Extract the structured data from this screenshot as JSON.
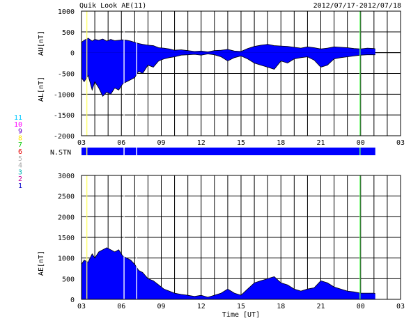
{
  "header": {
    "title": "Quik Look AE(11)",
    "date_range": "2012/07/17-2012/07/18"
  },
  "station_legend": [
    {
      "num": "11",
      "color": "#00c8ff"
    },
    {
      "num": "10",
      "color": "#ff00ff"
    },
    {
      "num": "9",
      "color": "#6400c8"
    },
    {
      "num": "8",
      "color": "#ffe600"
    },
    {
      "num": "7",
      "color": "#00c800"
    },
    {
      "num": "6",
      "color": "#e60000"
    },
    {
      "num": "5",
      "color": "#b4b4b4"
    },
    {
      "num": "4",
      "color": "#a0a0a0"
    },
    {
      "num": "3",
      "color": "#00b4b4"
    },
    {
      "num": "2",
      "color": "#c80096"
    },
    {
      "num": "1",
      "color": "#0000c8"
    }
  ],
  "chart_data": [
    {
      "type": "area",
      "name": "AU/AL",
      "ylabel_top": "AU[nT]",
      "ylabel_bottom": "AL[nT]",
      "ylim": [
        -2000,
        1000
      ],
      "yticks": [
        "1000",
        "500",
        "0",
        "-500",
        "-1000",
        "-1500",
        "-2000"
      ],
      "ytick_values": [
        1000,
        500,
        0,
        -500,
        -1000,
        -1500,
        -2000
      ],
      "xticks": [
        "03",
        "06",
        "09",
        "12",
        "15",
        "18",
        "21",
        "00",
        "03"
      ],
      "xlim_hours": [
        3,
        27
      ],
      "grid": true,
      "fill_color": "#0000ff",
      "series": [
        {
          "label": "AU",
          "x": [
            3.0,
            3.2,
            3.5,
            3.8,
            4.0,
            4.3,
            4.6,
            4.9,
            5.2,
            5.5,
            5.8,
            6.1,
            6.4,
            6.7,
            7.0,
            7.3,
            7.6,
            8.0,
            8.4,
            8.8,
            9.2,
            9.6,
            10.0,
            10.5,
            11.0,
            11.5,
            12.0,
            12.5,
            13.0,
            13.5,
            14.0,
            14.5,
            15.0,
            15.5,
            16.0,
            16.5,
            17.0,
            17.5,
            18.0,
            18.5,
            19.0,
            19.5,
            20.0,
            20.5,
            21.0,
            21.5,
            22.0,
            22.5,
            23.0,
            23.5,
            24.0,
            24.5,
            25.0,
            25.1
          ],
          "y": [
            250,
            300,
            350,
            280,
            320,
            300,
            330,
            280,
            320,
            290,
            300,
            310,
            300,
            280,
            250,
            220,
            200,
            180,
            170,
            120,
            110,
            90,
            60,
            70,
            50,
            30,
            40,
            20,
            50,
            60,
            80,
            40,
            30,
            100,
            150,
            180,
            200,
            170,
            160,
            150,
            130,
            110,
            140,
            120,
            90,
            110,
            140,
            130,
            120,
            100,
            90,
            110,
            100,
            90
          ]
        },
        {
          "label": "AL",
          "x": [
            3.0,
            3.2,
            3.5,
            3.8,
            4.0,
            4.3,
            4.6,
            4.9,
            5.2,
            5.5,
            5.8,
            6.1,
            6.4,
            6.7,
            7.0,
            7.3,
            7.6,
            8.0,
            8.4,
            8.8,
            9.2,
            9.6,
            10.0,
            10.5,
            11.0,
            11.5,
            12.0,
            12.5,
            13.0,
            13.5,
            14.0,
            14.5,
            15.0,
            15.5,
            16.0,
            16.5,
            17.0,
            17.5,
            18.0,
            18.5,
            19.0,
            19.5,
            20.0,
            20.5,
            21.0,
            21.5,
            22.0,
            22.5,
            23.0,
            23.5,
            24.0,
            24.5,
            25.0,
            25.1
          ],
          "y": [
            -600,
            -700,
            -550,
            -900,
            -700,
            -850,
            -1050,
            -950,
            -1000,
            -850,
            -900,
            -750,
            -700,
            -650,
            -600,
            -450,
            -500,
            -300,
            -350,
            -200,
            -150,
            -120,
            -100,
            -60,
            -50,
            -40,
            -60,
            -30,
            -50,
            -100,
            -200,
            -120,
            -80,
            -150,
            -250,
            -300,
            -350,
            -400,
            -200,
            -250,
            -150,
            -120,
            -100,
            -180,
            -350,
            -300,
            -150,
            -120,
            -100,
            -80,
            -60,
            -50,
            -50,
            -50
          ]
        }
      ]
    },
    {
      "type": "area",
      "name": "AE",
      "ylabel": "AE[nT]",
      "ylim": [
        0,
        3000
      ],
      "yticks": [
        "3000",
        "2500",
        "2000",
        "1500",
        "1000",
        "500",
        "0"
      ],
      "ytick_values": [
        3000,
        2500,
        2000,
        1500,
        1000,
        500,
        0
      ],
      "xticks": [
        "03",
        "06",
        "09",
        "12",
        "15",
        "18",
        "21",
        "00",
        "03"
      ],
      "xlabel": "Time [UT]",
      "xlim_hours": [
        3,
        27
      ],
      "grid": true,
      "fill_color": "#0000ff",
      "series": [
        {
          "label": "AE",
          "x": [
            3.0,
            3.2,
            3.5,
            3.8,
            4.0,
            4.3,
            4.6,
            4.9,
            5.2,
            5.5,
            5.8,
            6.1,
            6.4,
            6.7,
            7.0,
            7.3,
            7.6,
            8.0,
            8.4,
            8.8,
            9.2,
            9.6,
            10.0,
            10.5,
            11.0,
            11.5,
            12.0,
            12.5,
            13.0,
            13.5,
            14.0,
            14.5,
            15.0,
            15.5,
            16.0,
            16.5,
            17.0,
            17.5,
            18.0,
            18.5,
            19.0,
            19.5,
            20.0,
            20.5,
            21.0,
            21.5,
            22.0,
            22.5,
            23.0,
            23.5,
            24.0,
            24.5,
            25.0,
            25.1
          ],
          "y": [
            850,
            950,
            900,
            1100,
            1000,
            1150,
            1200,
            1250,
            1200,
            1150,
            1200,
            1050,
            1000,
            950,
            850,
            700,
            650,
            500,
            450,
            350,
            250,
            200,
            150,
            120,
            100,
            70,
            100,
            50,
            100,
            150,
            250,
            150,
            100,
            250,
            400,
            450,
            500,
            550,
            400,
            350,
            250,
            200,
            250,
            280,
            450,
            400,
            300,
            250,
            200,
            180,
            150,
            150,
            150,
            140
          ]
        }
      ]
    }
  ],
  "station_bar": {
    "label": "N.STN",
    "x_end_hours": 25.1,
    "color": "#0000ff"
  },
  "markers": [
    {
      "hour": 3.4,
      "color": "#ffff64"
    },
    {
      "hour": 6.2,
      "color": "#ffffff"
    },
    {
      "hour": 7.15,
      "color": "#ffffff"
    },
    {
      "hour": 23.95,
      "color": "#64ff64"
    }
  ]
}
